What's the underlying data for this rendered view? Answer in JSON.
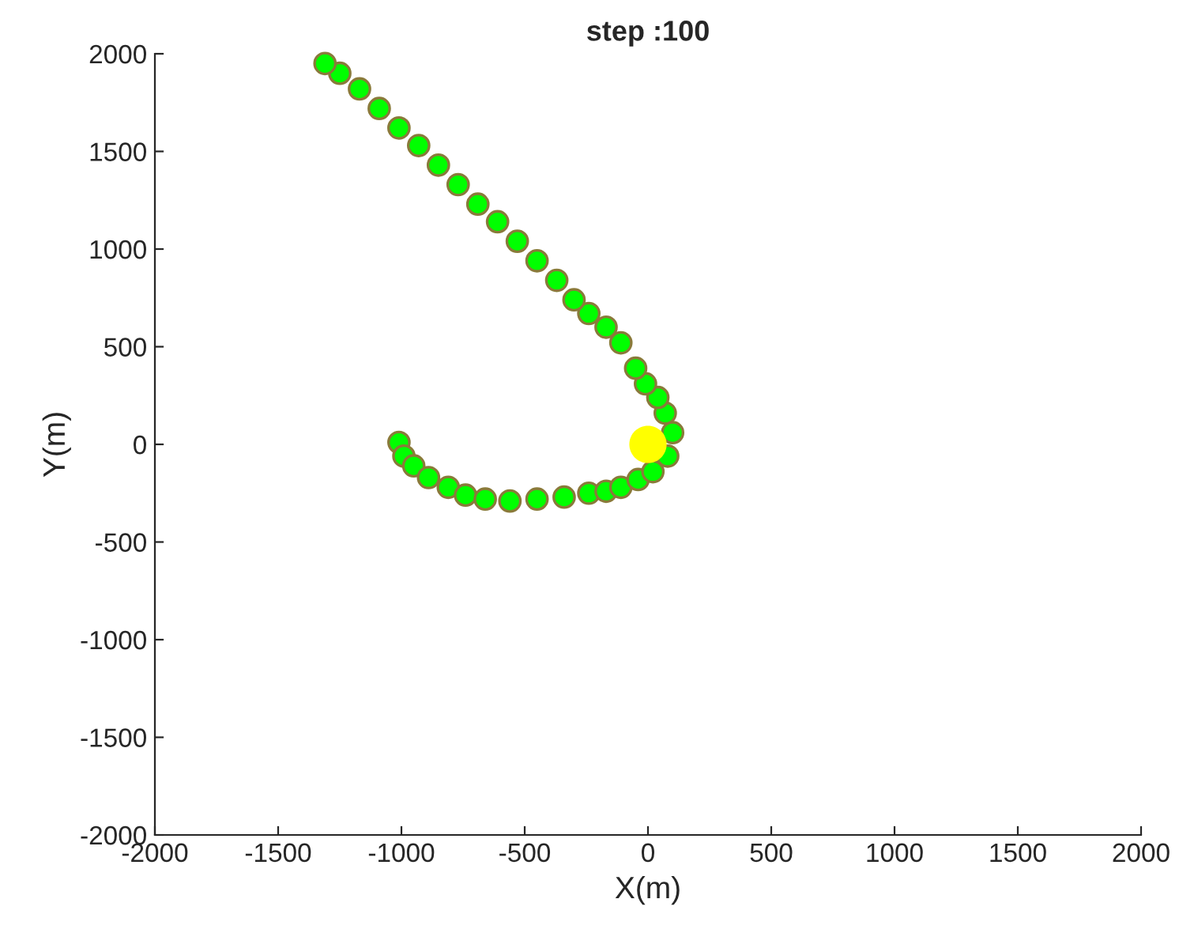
{
  "chart_data": {
    "type": "scatter",
    "title": "step :100",
    "xlabel": "X(m)",
    "ylabel": "Y(m)",
    "xlim": [
      -2000,
      2000
    ],
    "ylim": [
      -2000,
      2000
    ],
    "xticks": [
      -2000,
      -1500,
      -1000,
      -500,
      0,
      500,
      1000,
      1500,
      2000
    ],
    "yticks": [
      -2000,
      -1500,
      -1000,
      -500,
      0,
      500,
      1000,
      1500,
      2000
    ],
    "grid": false,
    "marker": "circle",
    "series": [
      {
        "color": "#00ff00",
        "x": [
          -1010,
          -990,
          -950,
          -890,
          -810,
          -740,
          -660,
          -560,
          -450,
          -340,
          -240,
          -170,
          -110,
          -40,
          20,
          80,
          100,
          70,
          40,
          -10,
          -50,
          -110,
          -170,
          -240,
          -300,
          -370,
          -450,
          -530,
          -610,
          -690,
          -770,
          -850,
          -930,
          -1010,
          -1090,
          -1170,
          -1250,
          -1310
        ],
        "values": [
          10,
          -60,
          -110,
          -170,
          -220,
          -260,
          -280,
          -290,
          -280,
          -270,
          -250,
          -240,
          -220,
          -180,
          -140,
          -60,
          60,
          160,
          240,
          310,
          390,
          520,
          600,
          670,
          740,
          840,
          940,
          1040,
          1140,
          1230,
          1330,
          1430,
          1530,
          1620,
          1720,
          1820,
          1900,
          1950
        ]
      },
      {
        "color": "#ffff00",
        "x": [
          0
        ],
        "values": [
          0
        ]
      }
    ]
  }
}
